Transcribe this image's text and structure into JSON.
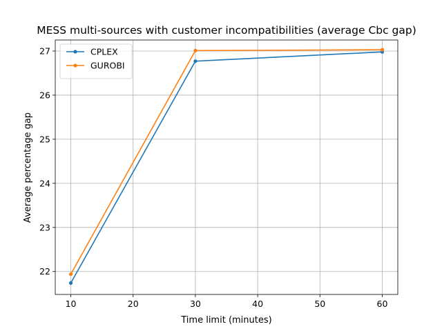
{
  "chart_data": {
    "type": "line",
    "title": "MESS multi-sources with customer incompatibilities (average Cbc gap)",
    "xlabel": "Time limit (minutes)",
    "ylabel": "Average percentage gap",
    "xlim": [
      7.5,
      62.5
    ],
    "ylim": [
      21.48,
      27.25
    ],
    "xticks": [
      10,
      20,
      30,
      40,
      50,
      60
    ],
    "yticks": [
      22,
      23,
      24,
      25,
      26,
      27
    ],
    "grid": true,
    "legend_position": "upper left",
    "x": [
      10,
      30,
      60
    ],
    "series": [
      {
        "name": "CPLEX",
        "color": "#1f77b4",
        "marker": "circle",
        "values": [
          21.74,
          26.77,
          26.98
        ]
      },
      {
        "name": "GUROBI",
        "color": "#ff7f0e",
        "marker": "circle",
        "values": [
          21.94,
          27.01,
          27.03
        ]
      }
    ]
  }
}
